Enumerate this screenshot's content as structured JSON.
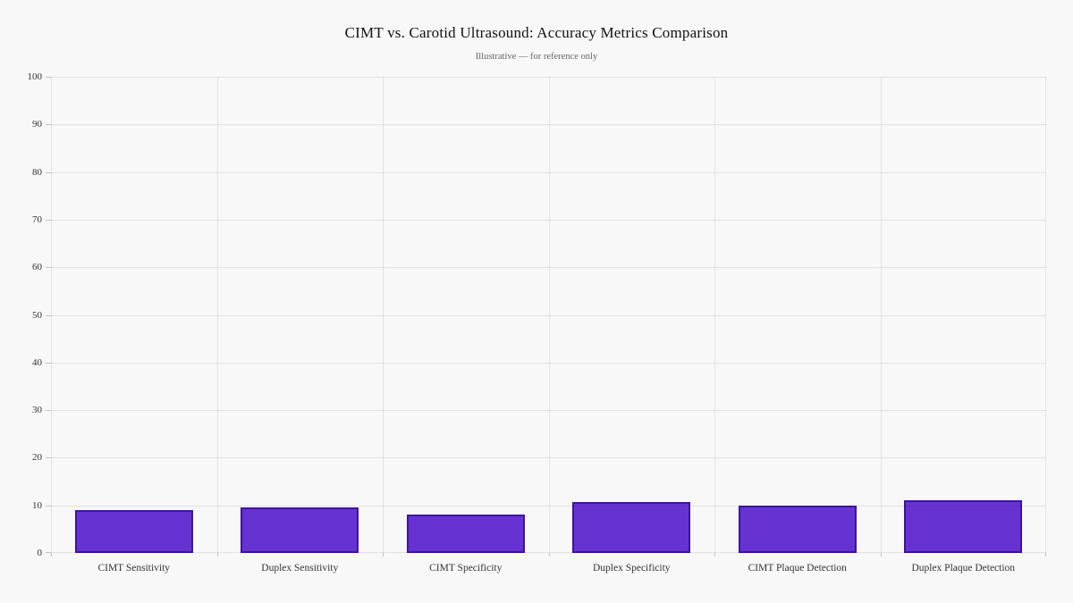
{
  "chart_data": {
    "type": "bar",
    "title": "CIMT vs. Carotid Ultrasound: Accuracy Metrics Comparison",
    "subtitle": "Illustrative — for reference only",
    "categories": [
      "CIMT Sensitivity",
      "Duplex Sensitivity",
      "CIMT Specificity",
      "Duplex Specificity",
      "CIMT Plaque Detection",
      "Duplex Plaque Detection"
    ],
    "values": [
      9.0,
      9.6,
      8.0,
      10.7,
      9.9,
      11.1
    ],
    "xlabel": "",
    "ylabel": "",
    "ylim": [
      0,
      100
    ],
    "ytick_step": 10,
    "ytick_labels": [
      "0",
      "10",
      "20",
      "30",
      "40",
      "50",
      "60",
      "70",
      "80",
      "90",
      "100"
    ],
    "grid": true,
    "legend": "none",
    "colors": {
      "background": "#f8f8f9",
      "bar_fill": "#6633d2",
      "bar_border": "#3d149e",
      "grid_line": "rgba(0,0,0,0.085)",
      "tick_mark": "#c4c4c4",
      "title_text": "#111111",
      "subtitle_text": "#666666",
      "axis_label_text": "#333333"
    }
  }
}
